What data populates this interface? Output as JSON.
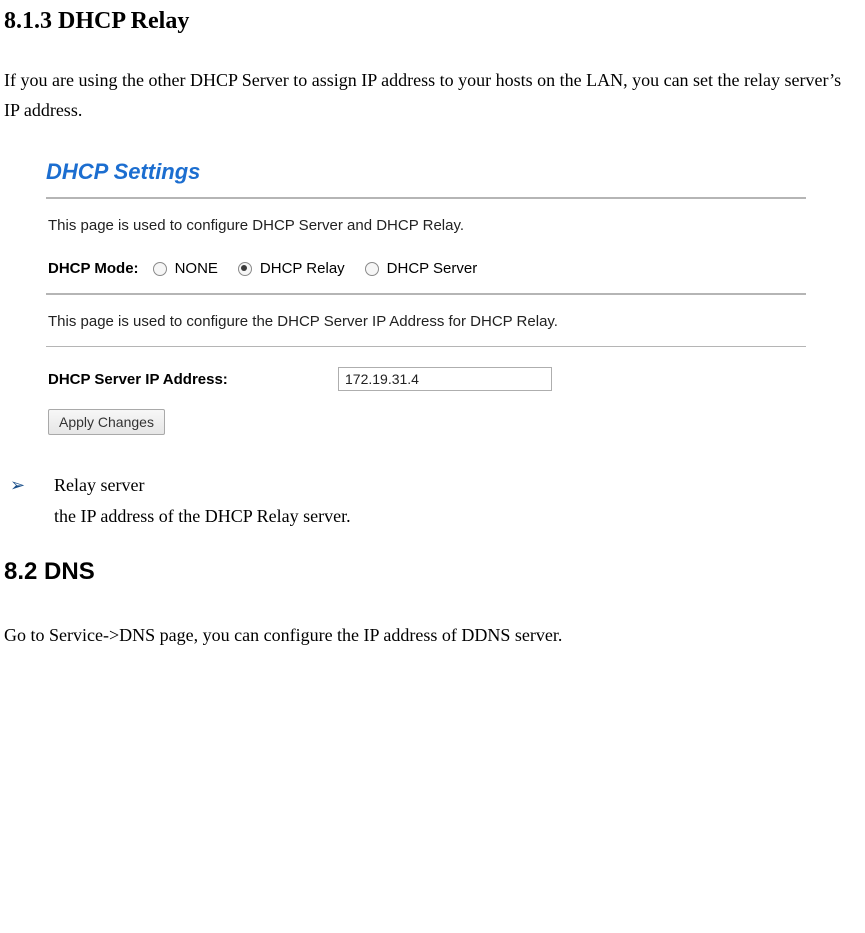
{
  "section_813": {
    "heading": "8.1.3 DHCP Relay",
    "intro": "If you are using the other DHCP Server to assign IP address to your hosts on the LAN, you can set the relay server’s IP address."
  },
  "panel": {
    "title": "DHCP Settings",
    "desc1": "This page is used to configure DHCP Server and DHCP Relay.",
    "mode_label": "DHCP Mode:",
    "options": {
      "none_label": "NONE",
      "none_checked": false,
      "relay_label": "DHCP Relay",
      "relay_checked": true,
      "server_label": "DHCP Server",
      "server_checked": false
    },
    "desc2": "This page is used to configure the DHCP Server IP Address for DHCP Relay.",
    "ip_label": "DHCP Server IP Address:",
    "ip_value": "172.19.31.4",
    "apply_label": "Apply Changes",
    "colors": {
      "title_color": "#1c6ed0",
      "rule_color": "#b5b5b5",
      "input_border": "#aeaeae",
      "button_border": "#a9a9a9",
      "button_bg_top": "#f7f7f7",
      "button_bg_bottom": "#e6e6e6"
    }
  },
  "bullet": {
    "marker": "➢",
    "term": "Relay server",
    "desc": "the IP address of the DHCP Relay server.",
    "marker_color": "#1a4f8a"
  },
  "section_82": {
    "heading": "8.2 DNS",
    "intro": "Go to Service->DNS page, you can configure the IP address of DDNS server."
  }
}
